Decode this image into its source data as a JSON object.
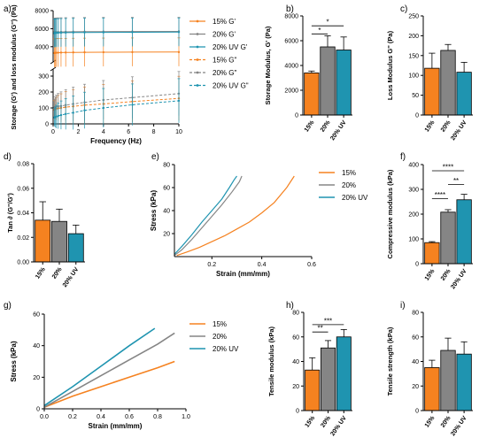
{
  "colors": {
    "p15": "#F58220",
    "p20": "#858585",
    "p20uv": "#1F94B0"
  },
  "chart_data": [
    {
      "panel": "a)",
      "type": "line",
      "xlabel": "Frequency (Hz)",
      "ylabel": "Storage (G') and loss modulus (G'') (Pa)",
      "xlim": [
        0,
        10
      ],
      "ylim": [
        0,
        8000
      ],
      "y_ticks": [
        "0",
        "100",
        "200",
        "300",
        "4000",
        "6000",
        "8000"
      ],
      "x_ticks": [
        "0",
        "2",
        "4",
        "6",
        "8",
        "10"
      ],
      "legend": [
        "15% G'",
        "20% G'",
        "20% UV G'",
        "15% G\"",
        "20% G\"",
        "20% UV G\""
      ],
      "legend_position": "right",
      "x": [
        0.1,
        0.16,
        0.25,
        0.4,
        0.63,
        1,
        1.6,
        2.5,
        4,
        6.3,
        10
      ],
      "series": [
        {
          "name": "15% G'",
          "color": "#F58220",
          "dash": false,
          "values": [
            3300,
            3320,
            3330,
            3340,
            3350,
            3360,
            3370,
            3380,
            3390,
            3400,
            3410
          ]
        },
        {
          "name": "20% G'",
          "color": "#858585",
          "dash": false,
          "values": [
            5600,
            5610,
            5620,
            5630,
            5640,
            5650,
            5660,
            5670,
            5680,
            5690,
            5700
          ]
        },
        {
          "name": "20% UV G'",
          "color": "#1F94B0",
          "dash": false,
          "values": [
            5500,
            5520,
            5530,
            5540,
            5550,
            5560,
            5570,
            5580,
            5590,
            5600,
            5620
          ]
        },
        {
          "name": "15% G\"",
          "color": "#F58220",
          "dash": true,
          "values": [
            90,
            92,
            95,
            98,
            100,
            105,
            110,
            118,
            125,
            140,
            160
          ]
        },
        {
          "name": "20% G\"",
          "color": "#858585",
          "dash": true,
          "values": [
            100,
            105,
            108,
            110,
            112,
            118,
            125,
            135,
            150,
            165,
            190
          ]
        },
        {
          "name": "20% UV G\"",
          "color": "#1F94B0",
          "dash": true,
          "values": [
            40,
            42,
            45,
            50,
            55,
            62,
            70,
            85,
            100,
            120,
            145
          ]
        }
      ]
    },
    {
      "panel": "b)",
      "type": "bar",
      "ylabel": "Storage Modulus, G' (Pa)",
      "ylim": [
        0,
        8000
      ],
      "y_ticks": [
        "0",
        "2000",
        "4000",
        "6000",
        "8000"
      ],
      "categories": [
        "15%",
        "20%",
        "20% UV"
      ],
      "values": [
        3400,
        5500,
        5250
      ],
      "errors": [
        150,
        900,
        1050
      ],
      "significance": [
        "*",
        "*"
      ]
    },
    {
      "panel": "c)",
      "type": "bar",
      "ylabel": "Loss Modulus G'' (Pa)",
      "ylim": [
        0,
        250
      ],
      "y_ticks": [
        "0",
        "50",
        "100",
        "150",
        "200",
        "250"
      ],
      "categories": [
        "15%",
        "20%",
        "20% UV"
      ],
      "values": [
        118,
        163,
        108
      ],
      "errors": [
        38,
        15,
        25
      ]
    },
    {
      "panel": "d)",
      "type": "bar",
      "ylabel": "Tan ∂ (G''/G')",
      "ylim": [
        0,
        0.08
      ],
      "y_ticks": [
        "0.00",
        "0.02",
        "0.04",
        "0.06",
        "0.08"
      ],
      "categories": [
        "15%",
        "20%",
        "20% UV"
      ],
      "values": [
        0.034,
        0.033,
        0.023
      ],
      "errors": [
        0.015,
        0.01,
        0.007
      ]
    },
    {
      "panel": "e)",
      "type": "line",
      "xlabel": "Strain (mm/mm)",
      "ylabel": "Stress (kPa)",
      "xlim": [
        0.05,
        0.6
      ],
      "ylim": [
        0,
        80
      ],
      "x_ticks": [
        "0.2",
        "0.4",
        "0.6"
      ],
      "y_ticks": [
        "20",
        "40",
        "60",
        "80"
      ],
      "legend_position": "right",
      "series": [
        {
          "name": "15%",
          "color": "#F58220",
          "x": [
            0.06,
            0.1,
            0.15,
            0.2,
            0.25,
            0.3,
            0.35,
            0.4,
            0.45,
            0.5,
            0.53
          ],
          "values": [
            1,
            4,
            8,
            13,
            18,
            24,
            30,
            38,
            47,
            60,
            70
          ]
        },
        {
          "name": "20%",
          "color": "#858585",
          "x": [
            0.05,
            0.08,
            0.12,
            0.16,
            0.2,
            0.24,
            0.28,
            0.31,
            0.32
          ],
          "values": [
            1,
            6,
            15,
            25,
            35,
            45,
            56,
            65,
            70
          ]
        },
        {
          "name": "20% UV",
          "color": "#1F94B0",
          "x": [
            0.05,
            0.08,
            0.12,
            0.16,
            0.2,
            0.24,
            0.27,
            0.29,
            0.3
          ],
          "values": [
            2,
            9,
            19,
            30,
            40,
            50,
            60,
            67,
            70
          ]
        }
      ]
    },
    {
      "panel": "f)",
      "type": "bar",
      "ylabel": "Compressive modulus (kPa)",
      "ylim": [
        0,
        400
      ],
      "y_ticks": [
        "0",
        "100",
        "200",
        "300",
        "400"
      ],
      "categories": [
        "15%",
        "20%",
        "20% UV"
      ],
      "values": [
        85,
        208,
        258
      ],
      "errors": [
        4,
        10,
        22
      ],
      "significance": [
        "****",
        "**",
        "****"
      ]
    },
    {
      "panel": "g)",
      "type": "line",
      "xlabel": "Strain (mm/mm)",
      "ylabel": "Stress (kPa)",
      "xlim": [
        0,
        1.0
      ],
      "ylim": [
        0,
        60
      ],
      "x_ticks": [
        "0.0",
        "0.2",
        "0.4",
        "0.6",
        "0.8",
        "1.0"
      ],
      "y_ticks": [
        "0",
        "20",
        "40",
        "60"
      ],
      "legend_position": "right",
      "series": [
        {
          "name": "15%",
          "color": "#F58220",
          "x": [
            0,
            0.2,
            0.4,
            0.6,
            0.8,
            0.92
          ],
          "values": [
            1,
            8,
            14,
            20,
            26,
            30
          ]
        },
        {
          "name": "20%",
          "color": "#858585",
          "x": [
            0,
            0.2,
            0.4,
            0.6,
            0.8,
            0.92
          ],
          "values": [
            1,
            11,
            21,
            31,
            41,
            48
          ]
        },
        {
          "name": "20% UV",
          "color": "#1F94B0",
          "x": [
            0,
            0.2,
            0.4,
            0.6,
            0.78
          ],
          "values": [
            2,
            14,
            27,
            40,
            51
          ]
        }
      ]
    },
    {
      "panel": "h)",
      "type": "bar",
      "ylabel": "Tensile modulus (kPa)",
      "ylim": [
        0,
        80
      ],
      "y_ticks": [
        "0",
        "20",
        "40",
        "60",
        "80"
      ],
      "categories": [
        "15%",
        "20%",
        "20% UV"
      ],
      "values": [
        33,
        51,
        60
      ],
      "errors": [
        10,
        6,
        6
      ],
      "significance": [
        "**",
        "***"
      ]
    },
    {
      "panel": "i)",
      "type": "bar",
      "ylabel": "Tensile strength (kPa)",
      "ylim": [
        0,
        80
      ],
      "y_ticks": [
        "0",
        "20",
        "40",
        "60",
        "80"
      ],
      "categories": [
        "15%",
        "20%",
        "20% UV"
      ],
      "values": [
        35,
        49,
        46
      ],
      "errors": [
        6,
        10,
        10
      ]
    }
  ]
}
